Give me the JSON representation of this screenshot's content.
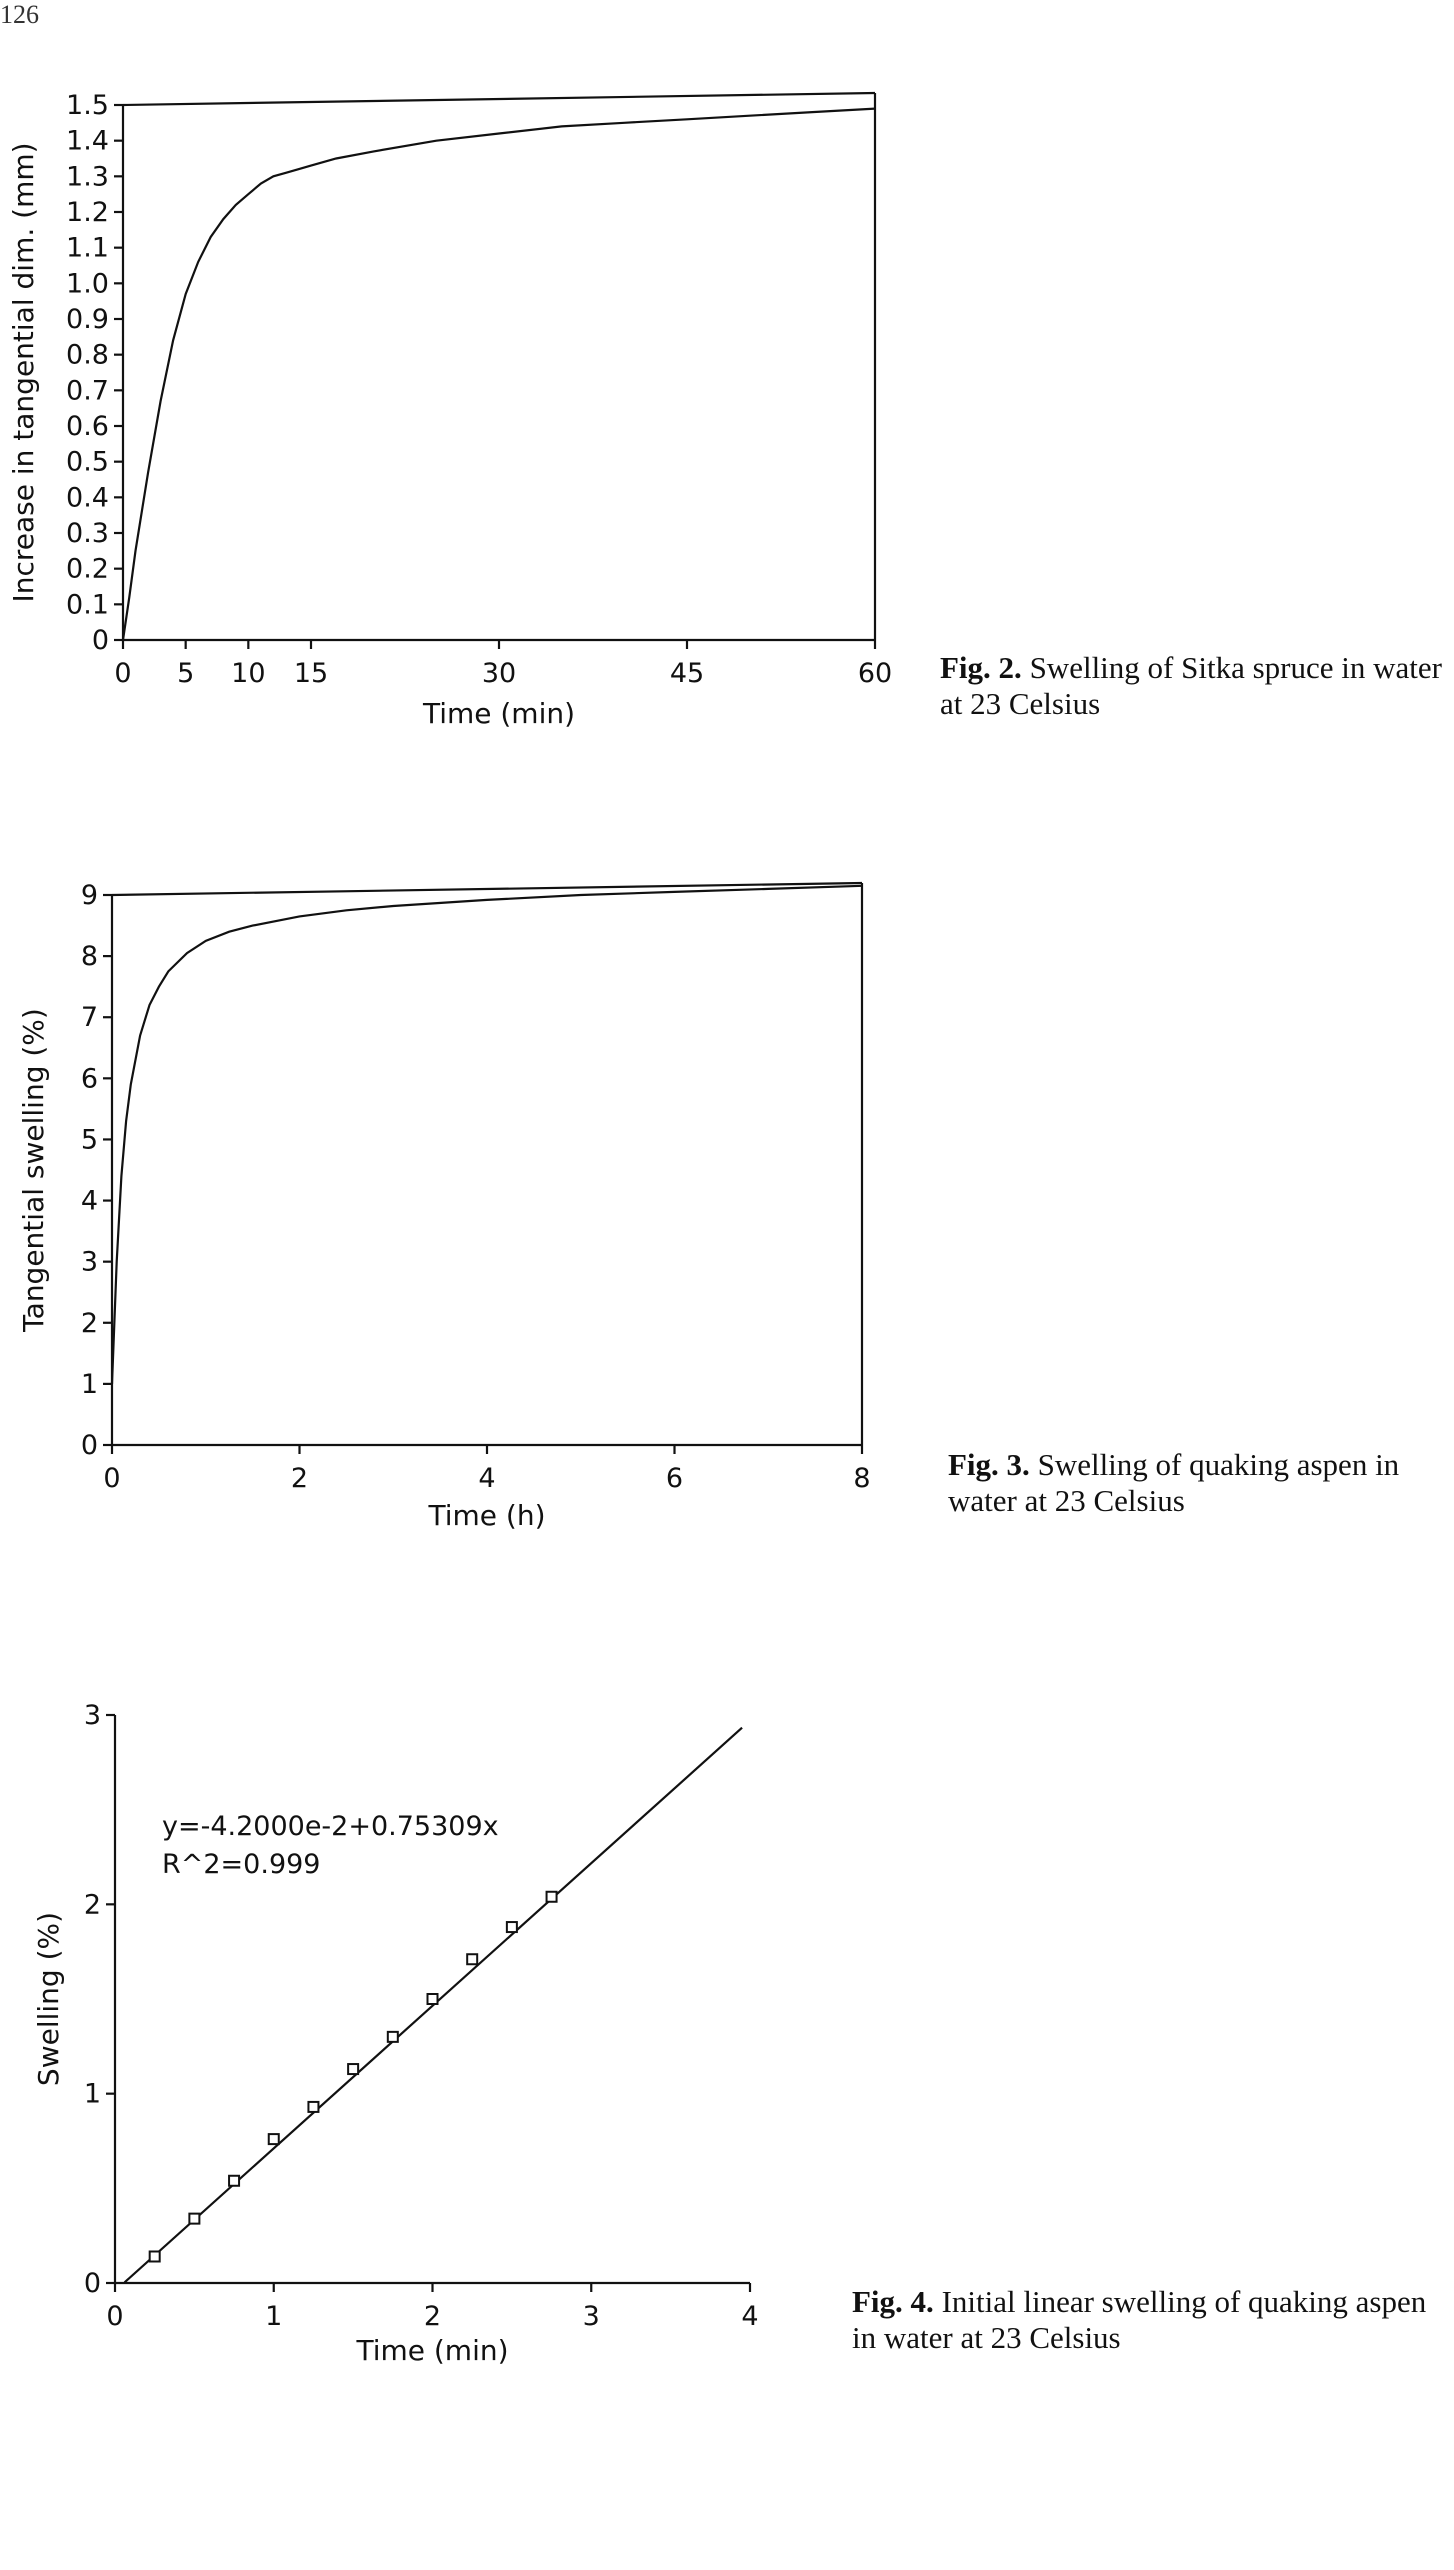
{
  "page_number": "126",
  "captions": [
    {
      "label": "Fig. 2.",
      "text": "Swelling of Sitka spruce in water at 23 Celsius"
    },
    {
      "label": "Fig. 3.",
      "text": "Swelling of quaking aspen in water at 23 Celsius"
    },
    {
      "label": "Fig. 4.",
      "text": "Initial linear swelling of quaking aspen in water at 23 Celsius"
    }
  ],
  "chart_data": [
    {
      "type": "line",
      "xlabel": "Time (min)",
      "ylabel": "Increase in tangential dim. (mm)",
      "xlim": [
        0,
        60
      ],
      "ylim": [
        0,
        1.5
      ],
      "xticks": [
        0,
        5,
        10,
        15,
        30,
        45,
        60
      ],
      "yticks": [
        0,
        0.1,
        0.2,
        0.3,
        0.4,
        0.5,
        0.6,
        0.7,
        0.8,
        0.9,
        1.0,
        1.1,
        1.2,
        1.3,
        1.4,
        1.5
      ],
      "xtick_labels": [
        "0",
        "5",
        "10",
        "15",
        "30",
        "45",
        "60"
      ],
      "ytick_labels": [
        "0",
        "0.1",
        "0.2",
        "0.3",
        "0.4",
        "0.5",
        "0.6",
        "0.7",
        "0.8",
        "0.9",
        "1.0",
        "1.1",
        "1.2",
        "1.3",
        "1.4",
        "1.5"
      ],
      "series": [
        {
          "x": [
            0,
            0.5,
            1,
            2,
            3,
            4,
            5,
            6,
            7,
            8,
            9,
            10,
            11,
            12,
            13,
            14,
            15,
            17,
            20,
            25,
            30,
            35,
            40,
            45,
            50,
            55,
            60
          ],
          "y": [
            0,
            0.12,
            0.25,
            0.47,
            0.67,
            0.84,
            0.97,
            1.06,
            1.13,
            1.18,
            1.22,
            1.25,
            1.28,
            1.3,
            1.31,
            1.32,
            1.33,
            1.35,
            1.37,
            1.4,
            1.42,
            1.44,
            1.45,
            1.46,
            1.47,
            1.48,
            1.49
          ]
        }
      ],
      "grid": false
    },
    {
      "type": "line",
      "xlabel": "Time (h)",
      "ylabel": "Tangential swelling (%)",
      "xlim": [
        0,
        8
      ],
      "ylim": [
        0,
        9
      ],
      "xticks": [
        0,
        2,
        4,
        6,
        8
      ],
      "yticks": [
        0,
        1,
        2,
        3,
        4,
        5,
        6,
        7,
        8,
        9
      ],
      "xtick_labels": [
        "0",
        "2",
        "4",
        "6",
        "8"
      ],
      "ytick_labels": [
        "0",
        "1",
        "2",
        "3",
        "4",
        "5",
        "6",
        "7",
        "8",
        "9"
      ],
      "series": [
        {
          "x": [
            0,
            0.05,
            0.1,
            0.15,
            0.2,
            0.3,
            0.4,
            0.5,
            0.6,
            0.8,
            1.0,
            1.25,
            1.5,
            2.0,
            2.5,
            3.0,
            4.0,
            5.0,
            6.0,
            7.0,
            8.0
          ],
          "y": [
            1.0,
            3.0,
            4.4,
            5.3,
            5.9,
            6.7,
            7.2,
            7.5,
            7.75,
            8.05,
            8.25,
            8.4,
            8.5,
            8.65,
            8.75,
            8.82,
            8.92,
            9.0,
            9.05,
            9.1,
            9.15
          ]
        }
      ],
      "grid": false
    },
    {
      "type": "scatter",
      "xlabel": "Time (min)",
      "ylabel": "Swelling (%)",
      "xlim": [
        0,
        4
      ],
      "ylim": [
        0,
        3
      ],
      "xticks": [
        0,
        1,
        2,
        3,
        4
      ],
      "yticks": [
        0,
        1,
        2,
        3
      ],
      "xtick_labels": [
        "0",
        "1",
        "2",
        "3",
        "4"
      ],
      "ytick_labels": [
        "0",
        "1",
        "2",
        "3"
      ],
      "annotations": [
        "y=-4.2000e-2+0.75309x",
        "R^2=0.999"
      ],
      "fit_line": {
        "intercept": -0.042,
        "slope": 0.75309,
        "x_range": [
          0.06,
          3.95
        ]
      },
      "series": [
        {
          "x": [
            0.25,
            0.5,
            0.75,
            1.0,
            1.25,
            1.5,
            1.75,
            2.0,
            2.25,
            2.5,
            2.75
          ],
          "y": [
            0.14,
            0.34,
            0.54,
            0.76,
            0.93,
            1.13,
            1.3,
            1.5,
            1.71,
            1.88,
            2.04
          ]
        }
      ],
      "grid": false
    }
  ]
}
